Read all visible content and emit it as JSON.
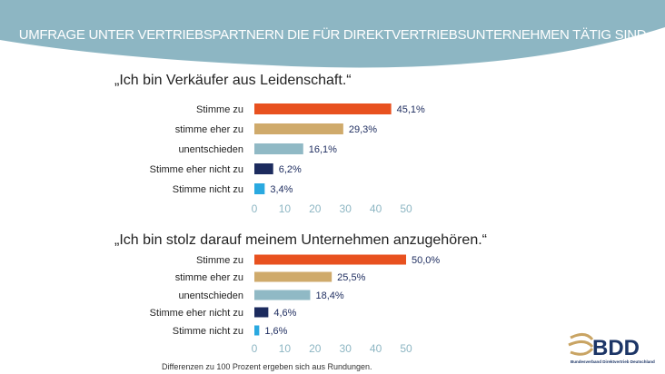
{
  "header": {
    "title": "UMFRAGE UNTER VERTRIEBSPARTNERN DIE FÜR DIREKTVERTRIEBSUNTERNEHMEN TÄTIG SIND"
  },
  "footnote": "Differenzen zu 100 Prozent ergeben sich aus Rundungen.",
  "logo": {
    "text": "BDD",
    "subtitle": "Bundesverband Direktvertrieb Deutschland"
  },
  "colors": {
    "header": "#8db6c3",
    "series": [
      "#e8511f",
      "#cfaa6b",
      "#90b9c5",
      "#1c2b5e",
      "#2aa9e0"
    ]
  },
  "chart_data": [
    {
      "type": "bar",
      "orientation": "horizontal",
      "title": "„Ich bin Verkäufer aus Leidenschaft.“",
      "categories": [
        "Stimme zu",
        "stimme eher zu",
        "unentschieden",
        "Stimme eher nicht zu",
        "Stimme nicht zu"
      ],
      "values": [
        45.1,
        29.3,
        16.1,
        6.2,
        3.4
      ],
      "labels": [
        "45,1%",
        "29,3%",
        "16,1%",
        "6,2%",
        "3,4%"
      ],
      "xlim": [
        0,
        50
      ],
      "ticks": [
        "0",
        "10",
        "20",
        "30",
        "40",
        "50"
      ],
      "grid": false
    },
    {
      "type": "bar",
      "orientation": "horizontal",
      "title": "„Ich bin stolz darauf meinem Unternehmen anzugehören.“",
      "categories": [
        "Stimme zu",
        "stimme eher zu",
        "unentschieden",
        "Stimme eher nicht zu",
        "Stimme nicht zu"
      ],
      "values": [
        50.0,
        25.5,
        18.4,
        4.6,
        1.6
      ],
      "labels": [
        "50,0%",
        "25,5%",
        "18,4%",
        "4,6%",
        "1,6%"
      ],
      "xlim": [
        0,
        50
      ],
      "ticks": [
        "0",
        "10",
        "20",
        "30",
        "40",
        "50"
      ],
      "grid": false
    }
  ]
}
